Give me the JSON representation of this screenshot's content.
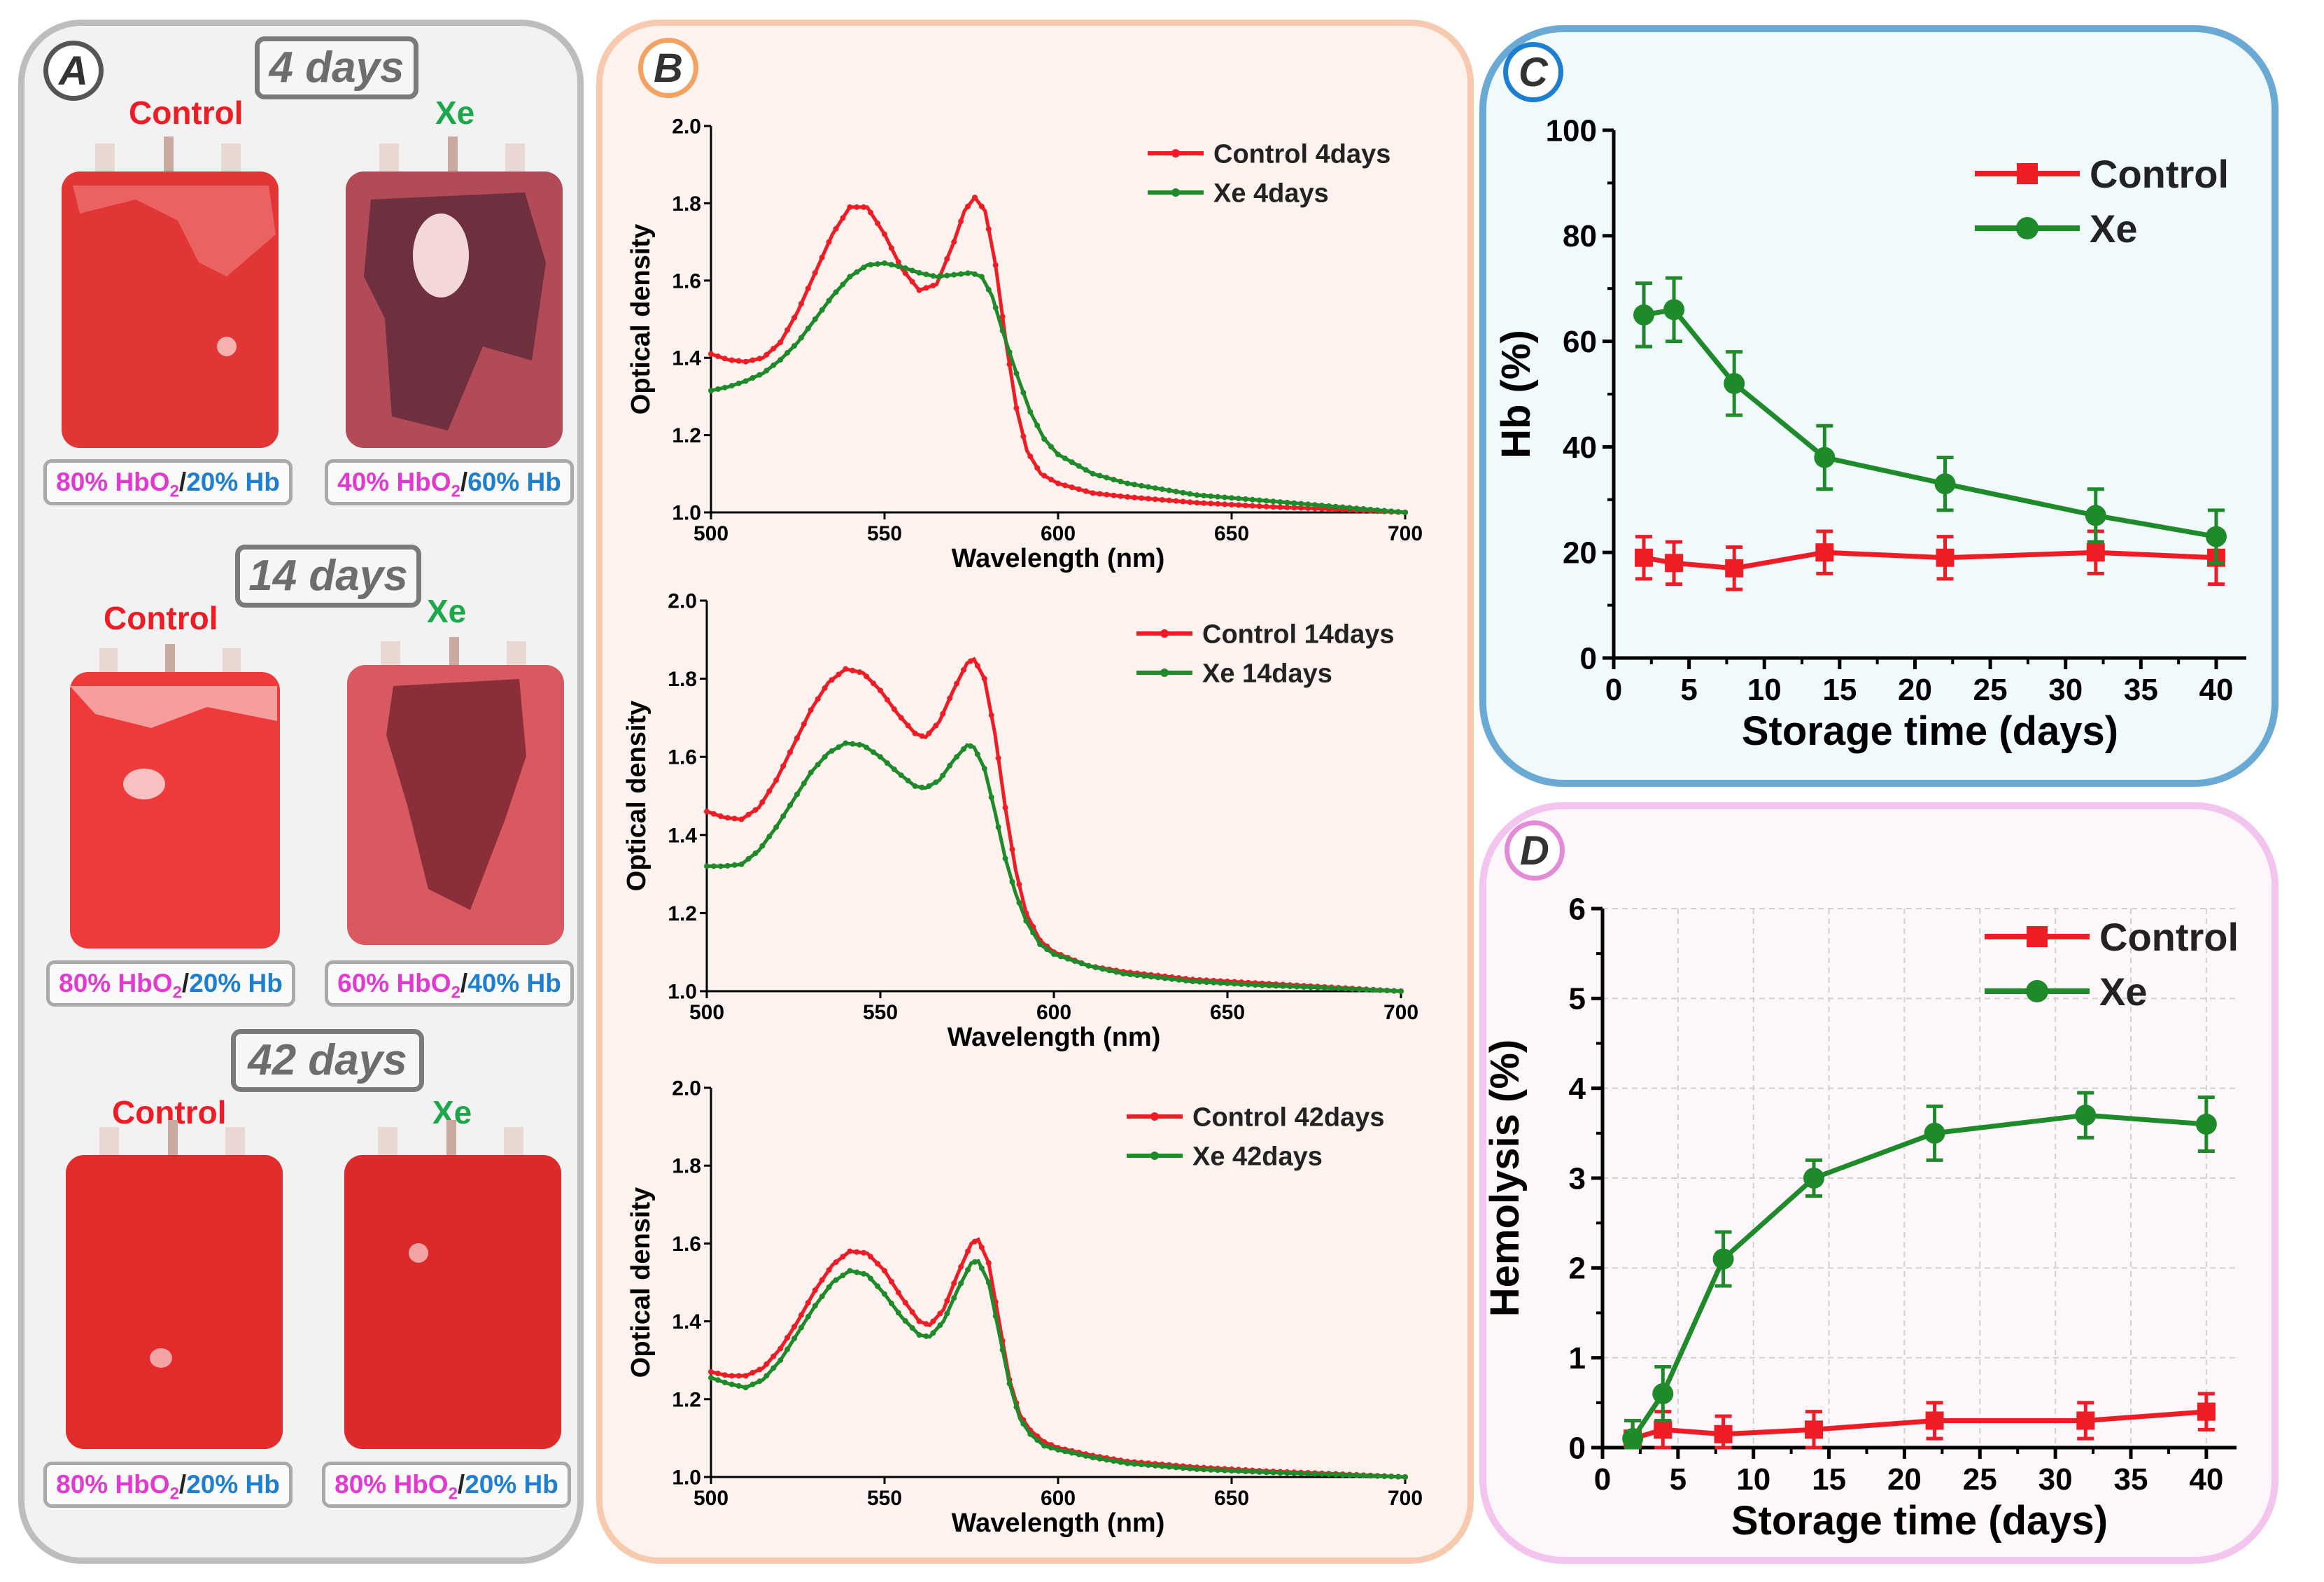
{
  "panelA": {
    "badge": "A",
    "rows": [
      {
        "days": "4 days",
        "control": {
          "label": "Control",
          "hbo2": "80% HbO",
          "sub": "2",
          "hb": "20% Hb"
        },
        "xe": {
          "label": "Xe",
          "hbo2": "40% HbO",
          "sub": "2",
          "hb": "60% Hb"
        }
      },
      {
        "days": "14 days",
        "control": {
          "label": "Control",
          "hbo2": "80% HbO",
          "sub": "2",
          "hb": "20% Hb"
        },
        "xe": {
          "label": "Xe",
          "hbo2": "60% HbO",
          "sub": "2",
          "hb": "40% Hb"
        }
      },
      {
        "days": "42 days",
        "control": {
          "label": "Control",
          "hbo2": "80% HbO",
          "sub": "2",
          "hb": "20% Hb"
        },
        "xe": {
          "label": "Xe",
          "hbo2": "80% HbO",
          "sub": "2",
          "hb": "20% Hb"
        }
      }
    ],
    "colors": {
      "control": "#ee1c25",
      "xe": "#1aa84b"
    }
  },
  "panelB": {
    "badge": "B"
  },
  "panelC": {
    "badge": "C"
  },
  "panelD": {
    "badge": "D"
  },
  "chart_data": [
    {
      "id": "B1",
      "type": "line",
      "xlabel": "Wavelength (nm)",
      "ylabel": "Optical density",
      "xlim": [
        500,
        700
      ],
      "ylim": [
        1.0,
        2.0
      ],
      "xticks": [
        500,
        550,
        600,
        650,
        700
      ],
      "yticks": [
        1.0,
        1.2,
        1.4,
        1.6,
        1.8,
        2.0
      ],
      "legend": "top-right",
      "series": [
        {
          "name": "Control 4days",
          "color": "#ee1c25",
          "points": [
            [
              500,
              1.41
            ],
            [
              505,
              1.395
            ],
            [
              510,
              1.39
            ],
            [
              515,
              1.4
            ],
            [
              520,
              1.44
            ],
            [
              525,
              1.52
            ],
            [
              530,
              1.62
            ],
            [
              535,
              1.72
            ],
            [
              540,
              1.79
            ],
            [
              545,
              1.79
            ],
            [
              550,
              1.72
            ],
            [
              555,
              1.63
            ],
            [
              560,
              1.575
            ],
            [
              565,
              1.59
            ],
            [
              570,
              1.7
            ],
            [
              573,
              1.78
            ],
            [
              576,
              1.815
            ],
            [
              579,
              1.78
            ],
            [
              582,
              1.64
            ],
            [
              585,
              1.44
            ],
            [
              588,
              1.27
            ],
            [
              591,
              1.16
            ],
            [
              595,
              1.1
            ],
            [
              600,
              1.075
            ],
            [
              610,
              1.05
            ],
            [
              620,
              1.04
            ],
            [
              640,
              1.025
            ],
            [
              660,
              1.015
            ],
            [
              680,
              1.008
            ],
            [
              700,
              1.0
            ]
          ]
        },
        {
          "name": "Xe 4days",
          "color": "#1f8a2a",
          "points": [
            [
              500,
              1.315
            ],
            [
              505,
              1.325
            ],
            [
              510,
              1.34
            ],
            [
              515,
              1.36
            ],
            [
              520,
              1.395
            ],
            [
              525,
              1.44
            ],
            [
              530,
              1.5
            ],
            [
              535,
              1.56
            ],
            [
              540,
              1.61
            ],
            [
              545,
              1.64
            ],
            [
              550,
              1.645
            ],
            [
              555,
              1.635
            ],
            [
              560,
              1.62
            ],
            [
              565,
              1.61
            ],
            [
              570,
              1.615
            ],
            [
              575,
              1.62
            ],
            [
              578,
              1.61
            ],
            [
              581,
              1.56
            ],
            [
              584,
              1.47
            ],
            [
              588,
              1.36
            ],
            [
              592,
              1.26
            ],
            [
              596,
              1.19
            ],
            [
              600,
              1.15
            ],
            [
              610,
              1.1
            ],
            [
              620,
              1.075
            ],
            [
              640,
              1.045
            ],
            [
              660,
              1.03
            ],
            [
              680,
              1.015
            ],
            [
              700,
              1.0
            ]
          ]
        }
      ]
    },
    {
      "id": "B2",
      "type": "line",
      "xlabel": "Wavelength (nm)",
      "ylabel": "Optical density",
      "xlim": [
        500,
        700
      ],
      "ylim": [
        1.0,
        2.0
      ],
      "xticks": [
        500,
        550,
        600,
        650,
        700
      ],
      "yticks": [
        1.0,
        1.2,
        1.4,
        1.6,
        1.8,
        2.0
      ],
      "legend": "top-right",
      "series": [
        {
          "name": "Control 14days",
          "color": "#ee1c25",
          "points": [
            [
              500,
              1.46
            ],
            [
              505,
              1.445
            ],
            [
              510,
              1.44
            ],
            [
              515,
              1.47
            ],
            [
              520,
              1.54
            ],
            [
              525,
              1.63
            ],
            [
              530,
              1.72
            ],
            [
              535,
              1.79
            ],
            [
              540,
              1.825
            ],
            [
              545,
              1.815
            ],
            [
              550,
              1.77
            ],
            [
              555,
              1.71
            ],
            [
              560,
              1.66
            ],
            [
              563,
              1.65
            ],
            [
              567,
              1.69
            ],
            [
              571,
              1.77
            ],
            [
              575,
              1.84
            ],
            [
              577,
              1.85
            ],
            [
              580,
              1.8
            ],
            [
              583,
              1.66
            ],
            [
              586,
              1.47
            ],
            [
              589,
              1.31
            ],
            [
              592,
              1.2
            ],
            [
              596,
              1.13
            ],
            [
              600,
              1.1
            ],
            [
              610,
              1.065
            ],
            [
              620,
              1.05
            ],
            [
              640,
              1.03
            ],
            [
              660,
              1.02
            ],
            [
              680,
              1.01
            ],
            [
              700,
              1.0
            ]
          ]
        },
        {
          "name": "Xe 14days",
          "color": "#1f8a2a",
          "points": [
            [
              500,
              1.32
            ],
            [
              505,
              1.32
            ],
            [
              510,
              1.325
            ],
            [
              515,
              1.36
            ],
            [
              520,
              1.42
            ],
            [
              525,
              1.49
            ],
            [
              530,
              1.56
            ],
            [
              535,
              1.61
            ],
            [
              540,
              1.635
            ],
            [
              545,
              1.63
            ],
            [
              550,
              1.6
            ],
            [
              555,
              1.56
            ],
            [
              560,
              1.525
            ],
            [
              563,
              1.52
            ],
            [
              567,
              1.54
            ],
            [
              571,
              1.59
            ],
            [
              575,
              1.63
            ],
            [
              577,
              1.625
            ],
            [
              580,
              1.57
            ],
            [
              583,
              1.46
            ],
            [
              586,
              1.34
            ],
            [
              589,
              1.25
            ],
            [
              592,
              1.18
            ],
            [
              596,
              1.12
            ],
            [
              600,
              1.095
            ],
            [
              610,
              1.065
            ],
            [
              620,
              1.045
            ],
            [
              640,
              1.025
            ],
            [
              660,
              1.015
            ],
            [
              680,
              1.008
            ],
            [
              700,
              1.0
            ]
          ]
        }
      ]
    },
    {
      "id": "B3",
      "type": "line",
      "xlabel": "Wavelength (nm)",
      "ylabel": "Optical density",
      "xlim": [
        500,
        700
      ],
      "ylim": [
        1.0,
        2.0
      ],
      "xticks": [
        500,
        550,
        600,
        650,
        700
      ],
      "yticks": [
        1.0,
        1.2,
        1.4,
        1.6,
        1.8,
        2.0
      ],
      "legend": "top-right",
      "series": [
        {
          "name": "Control 42days",
          "color": "#ee1c25",
          "points": [
            [
              500,
              1.27
            ],
            [
              505,
              1.26
            ],
            [
              510,
              1.26
            ],
            [
              515,
              1.28
            ],
            [
              520,
              1.33
            ],
            [
              525,
              1.4
            ],
            [
              530,
              1.48
            ],
            [
              535,
              1.545
            ],
            [
              540,
              1.58
            ],
            [
              545,
              1.575
            ],
            [
              550,
              1.53
            ],
            [
              555,
              1.46
            ],
            [
              560,
              1.4
            ],
            [
              563,
              1.39
            ],
            [
              567,
              1.43
            ],
            [
              571,
              1.52
            ],
            [
              575,
              1.6
            ],
            [
              577,
              1.61
            ],
            [
              580,
              1.55
            ],
            [
              583,
              1.4
            ],
            [
              586,
              1.25
            ],
            [
              589,
              1.16
            ],
            [
              592,
              1.12
            ],
            [
              596,
              1.09
            ],
            [
              600,
              1.075
            ],
            [
              610,
              1.055
            ],
            [
              620,
              1.04
            ],
            [
              640,
              1.025
            ],
            [
              660,
              1.015
            ],
            [
              680,
              1.008
            ],
            [
              700,
              1.0
            ]
          ]
        },
        {
          "name": "Xe 42days",
          "color": "#1f8a2a",
          "points": [
            [
              500,
              1.255
            ],
            [
              505,
              1.24
            ],
            [
              510,
              1.23
            ],
            [
              515,
              1.25
            ],
            [
              520,
              1.3
            ],
            [
              525,
              1.37
            ],
            [
              530,
              1.44
            ],
            [
              535,
              1.5
            ],
            [
              540,
              1.53
            ],
            [
              545,
              1.52
            ],
            [
              550,
              1.47
            ],
            [
              555,
              1.41
            ],
            [
              560,
              1.365
            ],
            [
              563,
              1.36
            ],
            [
              567,
              1.4
            ],
            [
              571,
              1.48
            ],
            [
              575,
              1.55
            ],
            [
              577,
              1.555
            ],
            [
              580,
              1.5
            ],
            [
              583,
              1.37
            ],
            [
              586,
              1.24
            ],
            [
              589,
              1.15
            ],
            [
              592,
              1.11
            ],
            [
              596,
              1.08
            ],
            [
              600,
              1.07
            ],
            [
              610,
              1.05
            ],
            [
              620,
              1.035
            ],
            [
              640,
              1.02
            ],
            [
              660,
              1.012
            ],
            [
              680,
              1.006
            ],
            [
              700,
              1.0
            ]
          ]
        }
      ]
    },
    {
      "id": "C",
      "type": "line",
      "xlabel": "Storage time (days)",
      "ylabel": "Hb (%)",
      "xlim": [
        0,
        42
      ],
      "ylim": [
        0,
        100
      ],
      "xticks": [
        0,
        5,
        10,
        15,
        20,
        25,
        30,
        35,
        40
      ],
      "yticks": [
        0,
        20,
        40,
        60,
        80,
        100
      ],
      "legend": "top-right",
      "series": [
        {
          "name": "Control",
          "color": "#ee1c25",
          "marker": "square",
          "x": [
            2,
            4,
            8,
            14,
            22,
            32,
            40
          ],
          "y": [
            19,
            18,
            17,
            20,
            19,
            20,
            19
          ],
          "err": [
            4,
            4,
            4,
            4,
            4,
            4,
            5
          ]
        },
        {
          "name": "Xe",
          "color": "#1f8a2a",
          "marker": "circle",
          "x": [
            2,
            4,
            8,
            14,
            22,
            32,
            40
          ],
          "y": [
            65,
            66,
            52,
            38,
            33,
            27,
            23
          ],
          "err": [
            6,
            6,
            6,
            6,
            5,
            5,
            5
          ]
        }
      ]
    },
    {
      "id": "D",
      "type": "line",
      "xlabel": "Storage time (days)",
      "ylabel": "Hemolysis (%)",
      "xlim": [
        0,
        42
      ],
      "ylim": [
        0,
        6
      ],
      "xticks": [
        0,
        5,
        10,
        15,
        20,
        25,
        30,
        35,
        40
      ],
      "yticks": [
        0,
        1,
        2,
        3,
        4,
        5,
        6
      ],
      "legend": "top-right",
      "grid": true,
      "series": [
        {
          "name": "Control",
          "color": "#ee1c25",
          "marker": "square",
          "x": [
            2,
            4,
            8,
            14,
            22,
            32,
            40
          ],
          "y": [
            0.1,
            0.2,
            0.15,
            0.2,
            0.3,
            0.3,
            0.4
          ],
          "err": [
            0.2,
            0.2,
            0.2,
            0.2,
            0.2,
            0.2,
            0.2
          ]
        },
        {
          "name": "Xe",
          "color": "#1f8a2a",
          "marker": "circle",
          "x": [
            2,
            4,
            8,
            14,
            22,
            32,
            40
          ],
          "y": [
            0.1,
            0.6,
            2.1,
            3.0,
            3.5,
            3.7,
            3.6
          ],
          "err": [
            0.2,
            0.3,
            0.3,
            0.2,
            0.3,
            0.25,
            0.3
          ]
        }
      ]
    }
  ]
}
